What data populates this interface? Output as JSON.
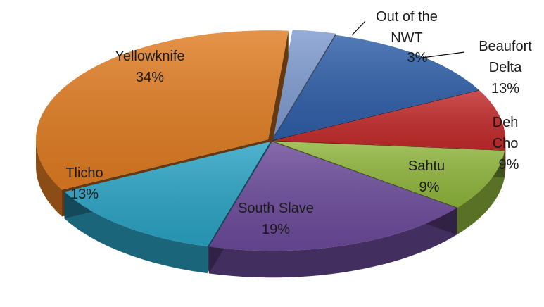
{
  "chart_data": {
    "type": "pie",
    "title": "",
    "legend": "none",
    "slices": [
      {
        "label": "Out of the NWT",
        "value": 3,
        "value_text": "3%",
        "color": "#7f9bd0"
      },
      {
        "label": "Beaufort Delta",
        "value": 13,
        "value_text": "13%",
        "color": "#2e5ea8"
      },
      {
        "label": "Deh Cho",
        "value": 9,
        "value_text": "9%",
        "color": "#c22a2a"
      },
      {
        "label": "Sahtu",
        "value": 9,
        "value_text": "9%",
        "color": "#8fb63c"
      },
      {
        "label": "South Slave",
        "value": 19,
        "value_text": "19%",
        "color": "#6b4a9a"
      },
      {
        "label": "Tlicho",
        "value": 13,
        "value_text": "13%",
        "color": "#2aa3c4"
      },
      {
        "label": "Yellowknife",
        "value": 34,
        "value_text": "34%",
        "color": "#e07c22"
      }
    ]
  }
}
